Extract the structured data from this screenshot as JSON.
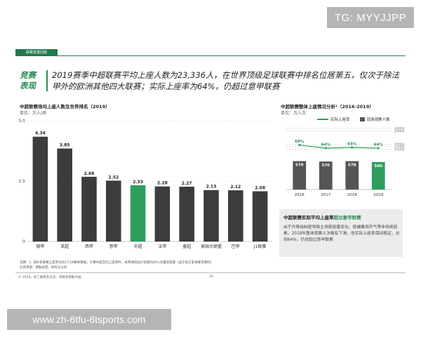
{
  "watermark_top": "TG: MYYJJPP",
  "watermark_bottom": "www.zh-6tfu-6tsports.com",
  "slide": {
    "tag": "联赛发展回顾",
    "headline_label": "竞赛表现",
    "headline": "2019赛季中超联赛平均上座人数为23,336人，在世界顶级足球联赛中排名位居第五，仅次于除法甲外的欧洲其他四大联赛；实际上座率为64%，仍超过意甲联赛",
    "note1": "注释：1. 海外各联赛上座率均为17/18赛季数据，计算中超实际上座率时，采用球场设计容量的85%为最高容量（由于地方安保要求限制）",
    "note2": "信息来源：德勤总结、研究与分析",
    "footer_left": "© 2020。如了解更多信息，请联系德勤中国。",
    "footer_page": "29"
  },
  "box": {
    "title_prefix": "中超联赛实际平均上座率",
    "title_highlight": "超过意甲联赛",
    "text": "由于升降级制度导致主场馆容量变化、极端暴雨天气等非持续因素，2019年整体观赛人次略有下滑，但实际上座率保持稳定，达到64%，仍然超过意甲联赛"
  },
  "chart_data": [
    {
      "type": "bar",
      "title": "中超联赛场均上座人数及世界排名（2019）",
      "unit": "单位：万人/场",
      "categories": [
        "德甲",
        "英超",
        "西甲",
        "意甲",
        "中超",
        "法甲",
        "墨超",
        "美国大联盟",
        "巴甲",
        "J1联赛"
      ],
      "values": [
        4.34,
        3.85,
        2.68,
        2.52,
        2.33,
        2.28,
        2.27,
        2.13,
        2.12,
        2.08
      ],
      "value_labels": [
        "4.34",
        "3.85",
        "2.68",
        "2.52",
        "2.33",
        "2.28",
        "2.27",
        "2.13",
        "2.12",
        "2.08"
      ],
      "highlight_index": 4,
      "ylim": [
        0,
        5.0
      ],
      "yticks": [
        "0",
        "2.5",
        "5.0"
      ],
      "bar_color": "#3c3c3c",
      "highlight_color": "#2e9e5e"
    },
    {
      "type": "bar+line",
      "title": "中超联赛整体上座情况分析¹（2016-2019）",
      "unit": "单位：万人次",
      "categories": [
        "2016",
        "2017",
        "2018",
        "2019"
      ],
      "bars": {
        "name": "现场观赛人数",
        "values": [
          579,
          570,
          578,
          560
        ],
        "labels": [
          "579",
          "570",
          "578",
          "560"
        ],
        "color": "#555555"
      },
      "line": {
        "name": "实际上座率",
        "values": [
          69,
          64,
          65,
          64
        ],
        "labels": [
          "69%",
          "64%",
          "65%",
          "64%"
        ],
        "color": "#2e9e5e"
      },
      "references": [
        {
          "label": "英超联赛 - 96.1%",
          "value": 96.1
        },
        {
          "label": "德甲联赛 - 91.4%",
          "value": 91.4
        },
        {
          "label": "西甲联赛 - 70.5%",
          "value": 70.5
        },
        {
          "label": "法甲联赛 - 67.0%",
          "value": 67.0
        },
        {
          "label": "意甲联赛 - 62.3%",
          "value": 62.3
        }
      ]
    }
  ]
}
